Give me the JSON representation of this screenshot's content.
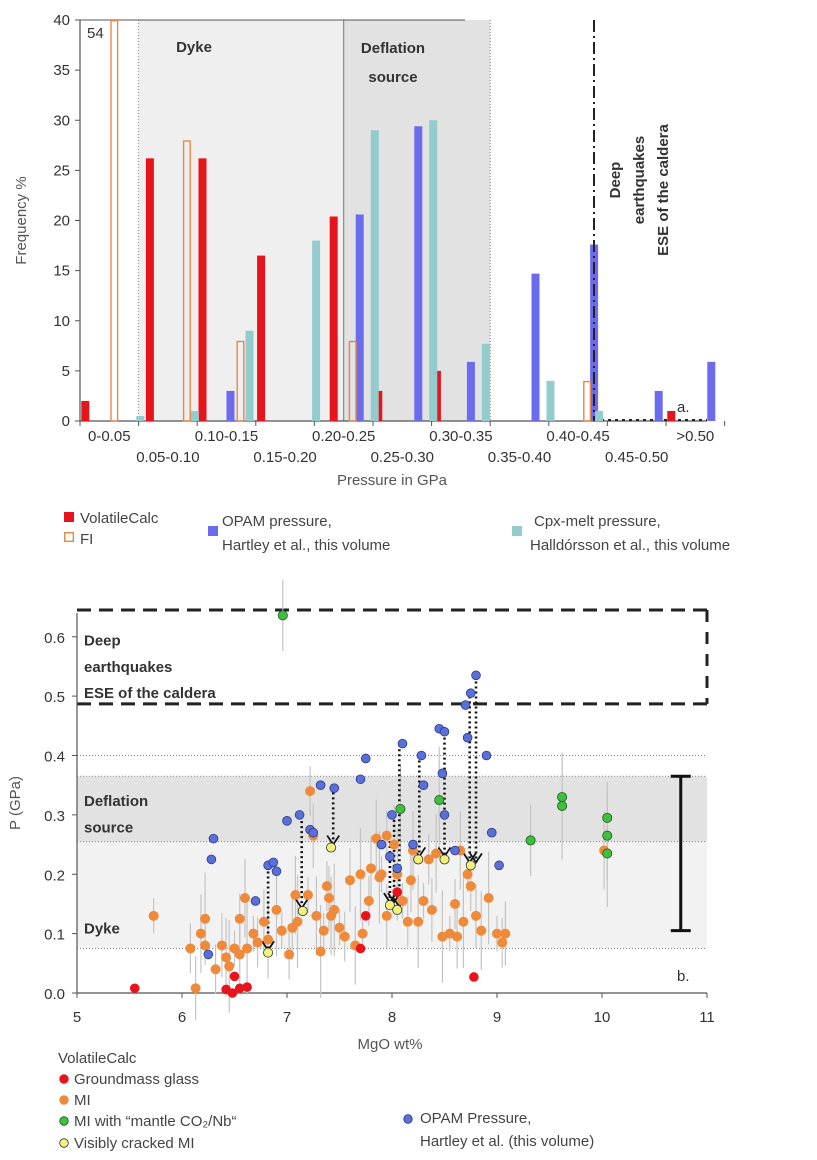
{
  "chart_data": [
    {
      "type": "bar",
      "ylabel": "Frequency %",
      "xlabel": "Pressure  in GPa",
      "panel_label": "a.",
      "ylim": [
        0,
        40
      ],
      "yticks": [
        0,
        5,
        10,
        15,
        20,
        25,
        30,
        35,
        40
      ],
      "categories": [
        "0-0.05",
        "0.05-0.10",
        "0.10-0.15",
        "0.15-0.20",
        "0.20-0.25",
        "0.25-0.30",
        "0.30-0.35",
        "0.35-0.40",
        "0.40-0.45",
        "0.45-0.50",
        ">0.50"
      ],
      "category_labels_row1": [
        "0-0.05",
        "0.10-0.15",
        "0.20-0.25",
        "0.30-0.35",
        "0.40-0.45",
        ">0.50"
      ],
      "category_labels_row2": [
        "0.05-0.10",
        "0.15-0.20",
        "0.25-0.30",
        "0.35-0.40",
        "0.45-0.50"
      ],
      "series": [
        {
          "name": "VolatileCalc",
          "color": "#e8141b",
          "style": "filled",
          "values": [
            2,
            26.2,
            26.2,
            16.5,
            20.4,
            3,
            5,
            0,
            0,
            0,
            1
          ]
        },
        {
          "name": "OPAM pressure, Hartley et al., this volume",
          "color": "#6b6bee",
          "style": "filled",
          "values": [
            0,
            0,
            3,
            0,
            20.6,
            29.4,
            5.9,
            14.7,
            17.6,
            3,
            5.9
          ]
        },
        {
          "name": "Cpx-melt pressure, Halldórsson et al., this volume",
          "color": "#92cccc",
          "style": "filled",
          "values": [
            0.5,
            1,
            9,
            18,
            29,
            30,
            7.7,
            4,
            1,
            0,
            0
          ]
        },
        {
          "name": "FI",
          "color": "#e8874a",
          "style": "hollow",
          "values": [
            40,
            28,
            8,
            0,
            8,
            0,
            0,
            0,
            4,
            0,
            0
          ]
        }
      ],
      "overflow_label": "54",
      "regions": [
        {
          "label": "Dyke",
          "from": 0.05,
          "to": 0.225,
          "color": "#efefef",
          "text_color": "#8a8a8a"
        },
        {
          "label": "Deflation source",
          "from": 0.225,
          "to": 0.35,
          "color": "#e2e2e2",
          "text_color": "#1a1a1a"
        }
      ],
      "deep_label": "Deep earthquakes ESE of the caldera"
    },
    {
      "type": "scatter",
      "xlabel": "MgO wt%",
      "ylabel": "P (GPa)",
      "panel_label": "b.",
      "xlim": [
        5,
        11
      ],
      "ylim": [
        0,
        0.64
      ],
      "xticks": [
        5,
        6,
        7,
        8,
        9,
        10,
        11
      ],
      "yticks": [
        0.0,
        0.1,
        0.2,
        0.3,
        0.4,
        0.5,
        0.6
      ],
      "ytick_labels": [
        "0.0",
        "0.1",
        "0.2",
        "0.3",
        "0.4",
        "0.5",
        "0.6"
      ],
      "region_dyke": {
        "label": "Dyke",
        "from": 0.075,
        "to": 0.255
      },
      "region_deflation": {
        "label": "Deflation source",
        "from": 0.255,
        "to": 0.365
      },
      "deep_label": "Deep earthquakes ESE of the caldera",
      "legend_title": "VolatileCalc",
      "legend": [
        {
          "name": "Groundmass glass",
          "color": "#e8141b"
        },
        {
          "name": "MI",
          "color": "#ee8a3a"
        },
        {
          "name": "MI with “mantle CO₂/Nb“",
          "color": "#3fbe3f"
        },
        {
          "name": "Visibly cracked MI",
          "color": "#f2f27a"
        },
        {
          "name": "OPAM Pressure, Hartley et al. (this volume)",
          "color": "#5a6fd8"
        }
      ],
      "groundmass_glass": [
        [
          5.55,
          0.008
        ],
        [
          6.42,
          0.006
        ],
        [
          6.48,
          0.0
        ],
        [
          6.55,
          0.008
        ],
        [
          6.5,
          0.028
        ],
        [
          6.62,
          0.01
        ],
        [
          7.7,
          0.075
        ],
        [
          7.75,
          0.13
        ],
        [
          8.05,
          0.17
        ],
        [
          8.78,
          0.027
        ]
      ],
      "mantle_mi": [
        [
          6.96,
          0.636
        ],
        [
          8.08,
          0.31
        ],
        [
          8.45,
          0.325
        ],
        [
          9.32,
          0.257
        ],
        [
          9.62,
          0.33
        ],
        [
          9.62,
          0.315
        ],
        [
          10.05,
          0.295
        ],
        [
          10.05,
          0.265
        ],
        [
          10.05,
          0.235
        ]
      ],
      "cracked_mi": [
        [
          6.82,
          0.068
        ],
        [
          7.15,
          0.138
        ],
        [
          7.42,
          0.245
        ],
        [
          7.98,
          0.148
        ],
        [
          8.05,
          0.14
        ],
        [
          8.25,
          0.225
        ],
        [
          8.5,
          0.225
        ],
        [
          8.75,
          0.215
        ]
      ],
      "opam": [
        [
          6.25,
          0.065
        ],
        [
          6.28,
          0.225
        ],
        [
          6.3,
          0.26
        ],
        [
          6.7,
          0.155
        ],
        [
          6.82,
          0.215
        ],
        [
          6.87,
          0.22
        ],
        [
          6.9,
          0.205
        ],
        [
          7.0,
          0.29
        ],
        [
          7.12,
          0.3
        ],
        [
          7.22,
          0.275
        ],
        [
          7.25,
          0.27
        ],
        [
          7.32,
          0.35
        ],
        [
          7.45,
          0.345
        ],
        [
          7.7,
          0.36
        ],
        [
          7.75,
          0.395
        ],
        [
          7.9,
          0.25
        ],
        [
          7.98,
          0.23
        ],
        [
          8.0,
          0.3
        ],
        [
          8.05,
          0.21
        ],
        [
          8.1,
          0.42
        ],
        [
          8.2,
          0.25
        ],
        [
          8.28,
          0.4
        ],
        [
          8.3,
          0.35
        ],
        [
          8.45,
          0.445
        ],
        [
          8.48,
          0.37
        ],
        [
          8.5,
          0.44
        ],
        [
          8.5,
          0.3
        ],
        [
          8.6,
          0.24
        ],
        [
          8.7,
          0.485
        ],
        [
          8.72,
          0.43
        ],
        [
          8.75,
          0.505
        ],
        [
          8.8,
          0.535
        ],
        [
          8.9,
          0.4
        ],
        [
          8.95,
          0.27
        ],
        [
          9.02,
          0.215
        ]
      ],
      "mi": [
        [
          5.73,
          0.13
        ],
        [
          6.08,
          0.075
        ],
        [
          6.13,
          0.008
        ],
        [
          6.18,
          0.1
        ],
        [
          6.22,
          0.125
        ],
        [
          6.22,
          0.08
        ],
        [
          6.32,
          0.04
        ],
        [
          6.38,
          0.08
        ],
        [
          6.42,
          0.06
        ],
        [
          6.45,
          0.045
        ],
        [
          6.5,
          0.075
        ],
        [
          6.55,
          0.125
        ],
        [
          6.55,
          0.065
        ],
        [
          6.6,
          0.16
        ],
        [
          6.62,
          0.075
        ],
        [
          6.68,
          0.1
        ],
        [
          6.72,
          0.085
        ],
        [
          6.78,
          0.12
        ],
        [
          6.82,
          0.09
        ],
        [
          6.9,
          0.14
        ],
        [
          6.95,
          0.105
        ],
        [
          7.02,
          0.065
        ],
        [
          7.05,
          0.11
        ],
        [
          7.08,
          0.165
        ],
        [
          7.1,
          0.12
        ],
        [
          7.2,
          0.165
        ],
        [
          7.22,
          0.34
        ],
        [
          7.25,
          0.265
        ],
        [
          7.28,
          0.13
        ],
        [
          7.32,
          0.07
        ],
        [
          7.35,
          0.105
        ],
        [
          7.38,
          0.18
        ],
        [
          7.4,
          0.16
        ],
        [
          7.42,
          0.13
        ],
        [
          7.45,
          0.14
        ],
        [
          7.5,
          0.11
        ],
        [
          7.55,
          0.095
        ],
        [
          7.6,
          0.19
        ],
        [
          7.65,
          0.08
        ],
        [
          7.7,
          0.2
        ],
        [
          7.72,
          0.1
        ],
        [
          7.78,
          0.155
        ],
        [
          7.8,
          0.21
        ],
        [
          7.85,
          0.26
        ],
        [
          7.88,
          0.195
        ],
        [
          7.9,
          0.2
        ],
        [
          7.95,
          0.265
        ],
        [
          7.95,
          0.13
        ],
        [
          8.02,
          0.25
        ],
        [
          8.05,
          0.2
        ],
        [
          8.1,
          0.155
        ],
        [
          8.15,
          0.12
        ],
        [
          8.18,
          0.19
        ],
        [
          8.2,
          0.24
        ],
        [
          8.25,
          0.12
        ],
        [
          8.3,
          0.155
        ],
        [
          8.35,
          0.225
        ],
        [
          8.38,
          0.14
        ],
        [
          8.42,
          0.235
        ],
        [
          8.48,
          0.095
        ],
        [
          8.55,
          0.1
        ],
        [
          8.6,
          0.15
        ],
        [
          8.62,
          0.095
        ],
        [
          8.65,
          0.24
        ],
        [
          8.68,
          0.12
        ],
        [
          8.72,
          0.2
        ],
        [
          8.75,
          0.18
        ],
        [
          8.8,
          0.13
        ],
        [
          8.85,
          0.105
        ],
        [
          8.92,
          0.16
        ],
        [
          9.0,
          0.1
        ],
        [
          9.05,
          0.085
        ],
        [
          9.08,
          0.1
        ],
        [
          10.02,
          0.24
        ]
      ],
      "arrows": [
        [
          6.82,
          0.213,
          6.82,
          0.072
        ],
        [
          7.14,
          0.298,
          7.14,
          0.143
        ],
        [
          7.44,
          0.338,
          7.44,
          0.25
        ],
        [
          7.98,
          0.256,
          7.98,
          0.153
        ],
        [
          8.02,
          0.3,
          8.02,
          0.153
        ],
        [
          8.07,
          0.419,
          8.07,
          0.145
        ],
        [
          8.26,
          0.4,
          8.26,
          0.23
        ],
        [
          8.5,
          0.447,
          8.5,
          0.23
        ],
        [
          8.74,
          0.508,
          8.74,
          0.22
        ],
        [
          8.8,
          0.533,
          8.8,
          0.22
        ]
      ],
      "error_bar": {
        "x": 10.75,
        "from": 0.105,
        "to": 0.365
      }
    }
  ]
}
